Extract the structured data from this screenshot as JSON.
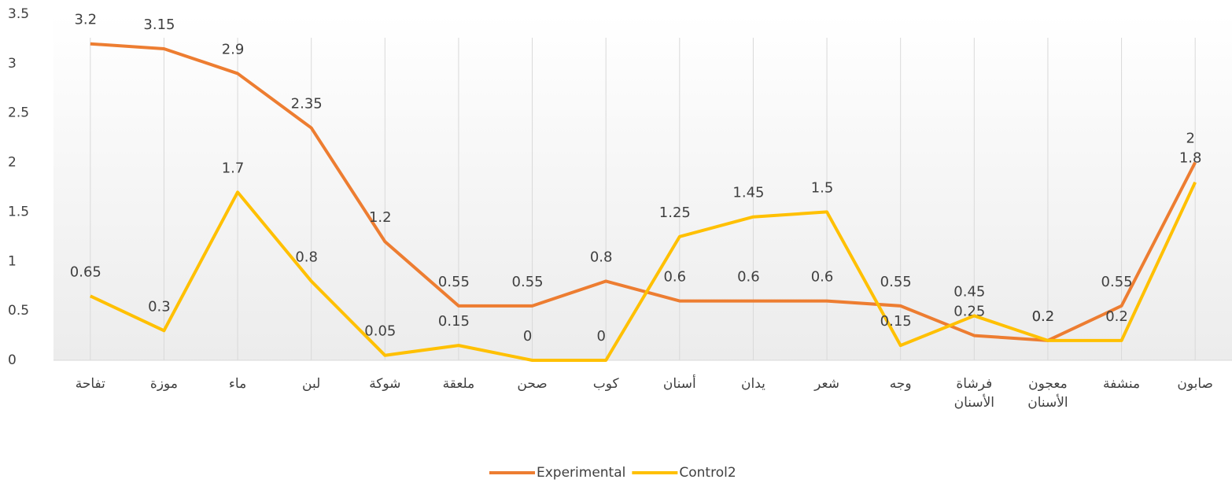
{
  "chart_data": {
    "type": "line",
    "categories": [
      "تفاحة",
      "موزة",
      "ماء",
      "لبن",
      "شوكة",
      "ملعقة",
      "صحن",
      "كوب",
      "أسنان",
      "يدان",
      "شعر",
      "وجه",
      "فرشاة الأسنان",
      "معجون الأسنان",
      "منشفة",
      "صابون"
    ],
    "series": [
      {
        "name": "Experimental",
        "color": "#ED7D31",
        "values": [
          3.2,
          3.15,
          2.9,
          2.35,
          1.2,
          0.55,
          0.55,
          0.8,
          0.6,
          0.6,
          0.6,
          0.55,
          0.25,
          0.2,
          0.55,
          2
        ]
      },
      {
        "name": "Control2",
        "color": "#FFC000",
        "values": [
          0.65,
          0.3,
          1.7,
          0.8,
          0.05,
          0.15,
          0,
          0,
          1.25,
          1.45,
          1.5,
          0.15,
          0.45,
          0.2,
          0.2,
          1.8
        ]
      }
    ],
    "ylim": [
      0,
      3.5
    ],
    "yticks": [
      0,
      0.5,
      1,
      1.5,
      2,
      2.5,
      3,
      3.5
    ],
    "legend": "bottom"
  }
}
